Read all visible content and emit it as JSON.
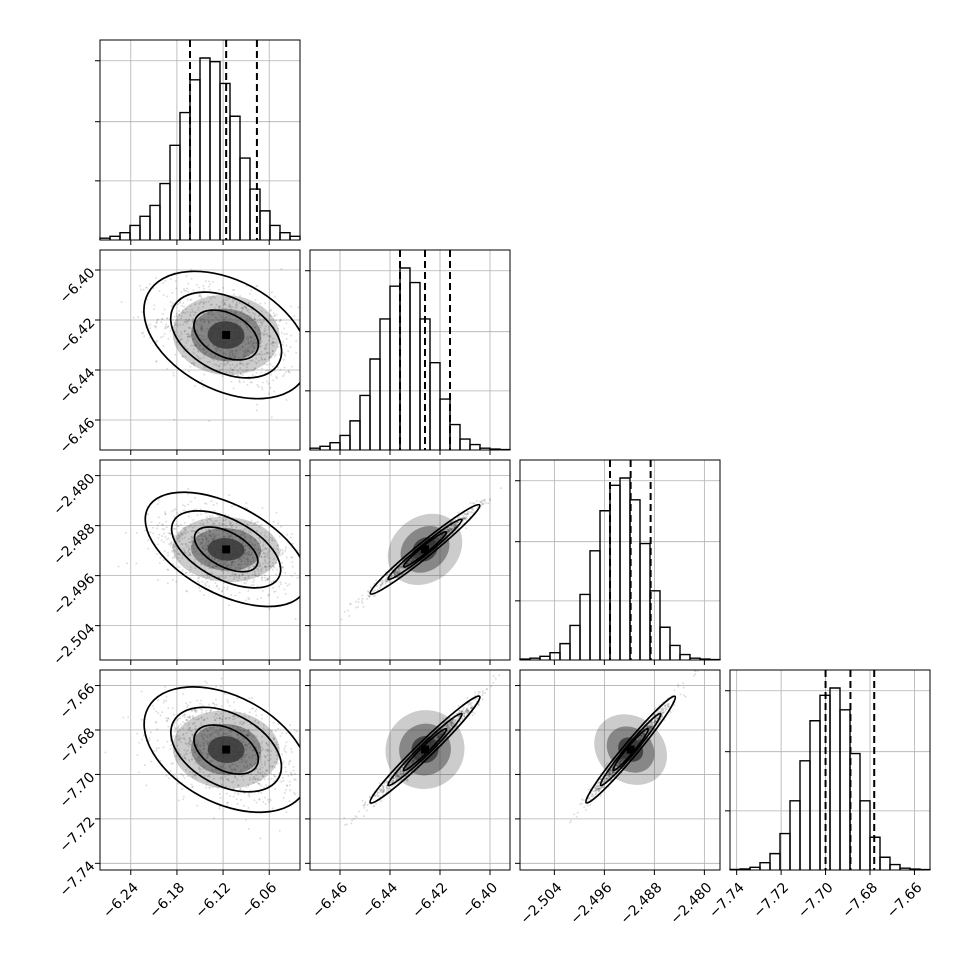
{
  "chart_data": {
    "type": "corner",
    "grid": true,
    "parameters": [
      {
        "range": [
          -6.28,
          -6.02
        ],
        "quantiles": [
          -6.163,
          -6.116,
          -6.076
        ],
        "ticks": [
          -6.24,
          -6.18,
          -6.12,
          -6.06
        ],
        "tick_labels": [
          "−6.24",
          "−6.18",
          "−6.12",
          "−6.06"
        ],
        "hist_counts": [
          1,
          2,
          4,
          8,
          13,
          19,
          31,
          52,
          70,
          88,
          100,
          98,
          86,
          68,
          45,
          28,
          16,
          8,
          4,
          2
        ]
      },
      {
        "range": [
          -6.472,
          -6.392
        ],
        "quantiles": [
          -6.436,
          -6.426,
          -6.416
        ],
        "ticks": [
          -6.46,
          -6.44,
          -6.42,
          -6.4
        ],
        "tick_labels": [
          "−6.46",
          "−6.44",
          "−6.42",
          "−6.40"
        ],
        "hist_counts": [
          1,
          2,
          4,
          8,
          16,
          30,
          50,
          72,
          90,
          100,
          92,
          72,
          48,
          28,
          14,
          6,
          3,
          1,
          0.5,
          0.2
        ]
      },
      {
        "range": [
          -2.5095,
          -2.4775
        ],
        "quantiles": [
          -2.4951,
          -2.4918,
          -2.4886
        ],
        "ticks": [
          -2.504,
          -2.496,
          -2.488,
          -2.48
        ],
        "tick_labels": [
          "−2.504",
          "−2.496",
          "−2.488",
          "−2.480"
        ],
        "hist_counts": [
          0.5,
          1,
          2,
          4,
          9,
          19,
          36,
          60,
          82,
          96,
          100,
          88,
          64,
          38,
          18,
          8,
          3,
          1,
          0.5,
          0.2
        ]
      },
      {
        "range": [
          -7.743,
          -7.653
        ],
        "quantiles": [
          -7.7,
          -7.6888,
          -7.6781
        ],
        "ticks": [
          -7.74,
          -7.72,
          -7.7,
          -7.68,
          -7.66
        ],
        "tick_labels": [
          "−7.74",
          "−7.72",
          "−7.70",
          "−7.68",
          "−7.66"
        ],
        "hist_counts": [
          0.3,
          0.6,
          1.5,
          4,
          9,
          20,
          38,
          60,
          82,
          96,
          100,
          88,
          64,
          38,
          18,
          7,
          3,
          1,
          0.5,
          0.2
        ]
      }
    ]
  }
}
